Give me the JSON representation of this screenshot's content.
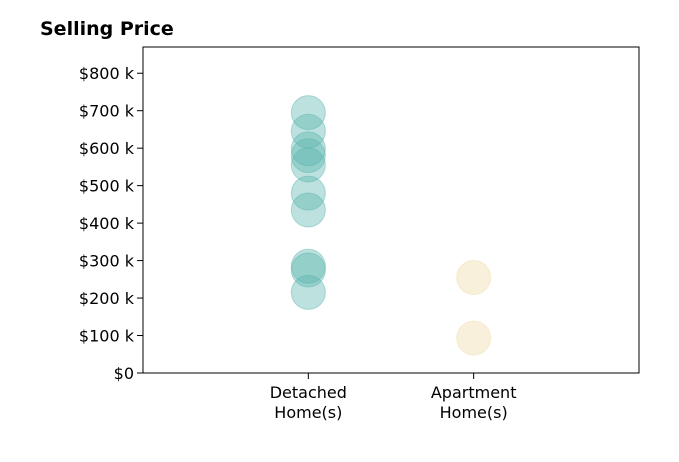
{
  "chart_data": {
    "type": "scatter",
    "title": "Selling Price",
    "xlabel": "",
    "ylabel": "",
    "categories": [
      "Detached\nHome(s)",
      "Apartment\nHome(s)"
    ],
    "yticks": [
      0,
      100,
      200,
      300,
      400,
      500,
      600,
      700,
      800
    ],
    "ytick_labels": [
      "$0",
      "$100 k",
      "$200 k",
      "$300 k",
      "$400 k",
      "$500 k",
      "$600 k",
      "$700 k",
      "$800 k"
    ],
    "ylim": [
      0,
      870
    ],
    "xlim": [
      0,
      3
    ],
    "grid": false,
    "series": [
      {
        "category": "Detached\nHome(s)",
        "color": "#5ab4ac",
        "values": [
          695,
          645,
          598,
          580,
          555,
          480,
          435,
          285,
          275,
          215
        ]
      },
      {
        "category": "Apartment\nHome(s)",
        "color": "#f0d9a8",
        "values": [
          255,
          93
        ]
      }
    ]
  }
}
